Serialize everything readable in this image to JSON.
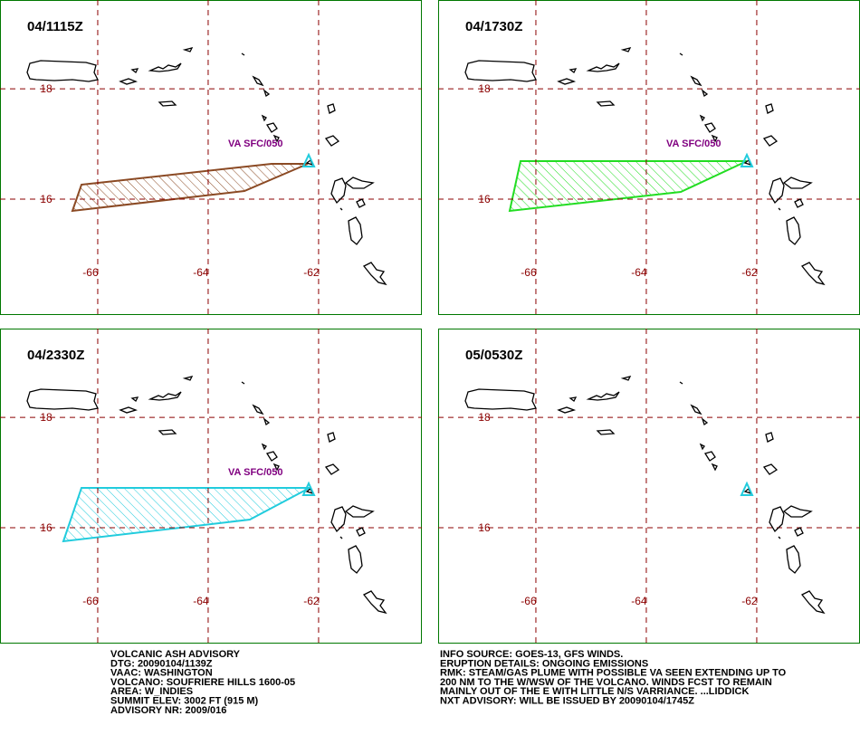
{
  "map": {
    "lon_ticks": [
      -66,
      -64,
      -62
    ],
    "lat_ticks": [
      18,
      16
    ],
    "lonlim": [
      -67.77,
      -60.13
    ],
    "latlim": [
      13.9,
      19.61
    ],
    "grid_color": "#8b0000"
  },
  "panels": [
    {
      "time": "04/1115Z",
      "label": "VA SFC/050",
      "plume_color": "#8b4a24"
    },
    {
      "time": "04/1730Z",
      "label": "VA SFC/050",
      "plume_color": "#22dd22"
    },
    {
      "time": "04/2330Z",
      "label": "VA SFC/050",
      "plume_color": "#22ccdd"
    },
    {
      "time": "05/0530Z"
    }
  ],
  "bulletin": {
    "left": [
      "VOLCANIC ASH ADVISORY",
      "DTG: 20090104/1139Z",
      "VAAC: WASHINGTON",
      "VOLCANO: SOUFRIERE HILLS 1600-05",
      "AREA: W_INDIES",
      "SUMMIT ELEV: 3002 FT (915 M)",
      "ADVISORY NR: 2009/016"
    ],
    "right": [
      "INFO SOURCE: GOES-13, GFS WINDS.",
      "ERUPTION DETAILS: ONGOING EMISSIONS",
      "RMK: STEAM/GAS PLUME WITH POSSIBLE VA SEEN EXTENDING UP TO",
      "200 NM TO THE W/WSW OF THE VOLCANO. WINDS FCST TO REMAIN",
      "MAINLY OUT OF THE E WITH LITTLE N/S VARRIANCE. ...LIDDICK",
      "NXT ADVISORY: WILL BE ISSUED BY 20090104/1745Z"
    ]
  }
}
